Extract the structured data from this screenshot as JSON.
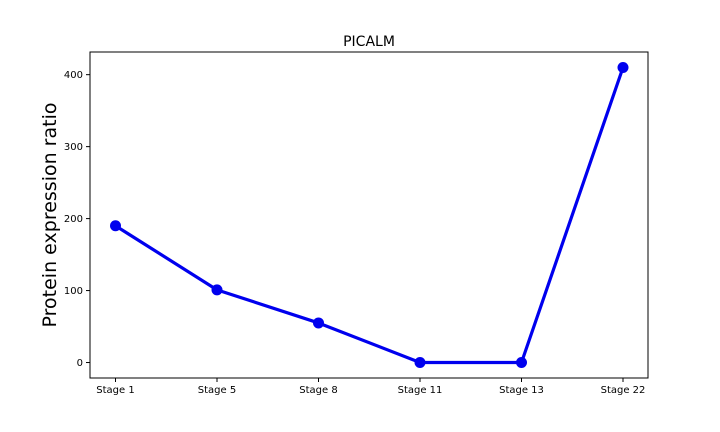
{
  "chart_data": {
    "type": "line",
    "title": "PICALM",
    "xlabel": "",
    "ylabel": "Protein expression ratio",
    "categories": [
      "Stage 1",
      "Stage 5",
      "Stage 8",
      "Stage 11",
      "Stage 13",
      "Stage 22"
    ],
    "series": [
      {
        "values": [
          190,
          101,
          55,
          0,
          0,
          410
        ]
      }
    ],
    "ylim": [
      -21.5,
      431.5
    ],
    "yticks": [
      0,
      100,
      200,
      300,
      400
    ],
    "grid": false,
    "line_color": "#0000ee",
    "marker_color": "#0000ee"
  }
}
